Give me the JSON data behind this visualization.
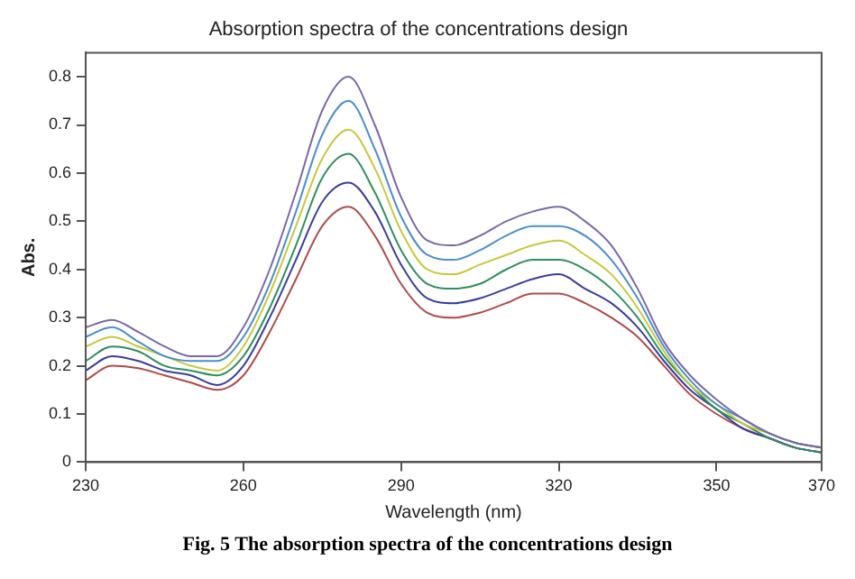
{
  "chart_data": {
    "type": "line",
    "title": "Absorption spectra of the concentrations design",
    "xlabel": "Wavelength (nm)",
    "ylabel": "Abs.",
    "annotations": [
      "Fig. 5 The absorption spectra of the concentrations design"
    ],
    "x": [
      230,
      235,
      240,
      245,
      250,
      255,
      260,
      265,
      270,
      275,
      280,
      285,
      290,
      295,
      300,
      305,
      310,
      315,
      320,
      325,
      330,
      335,
      340,
      345,
      350,
      355,
      360,
      365,
      370
    ],
    "series": [
      {
        "color": "#7b68a8",
        "values": [
          0.28,
          0.295,
          0.27,
          0.24,
          0.22,
          0.22,
          0.28,
          0.4,
          0.56,
          0.73,
          0.8,
          0.7,
          0.55,
          0.46,
          0.45,
          0.47,
          0.5,
          0.52,
          0.53,
          0.5,
          0.45,
          0.36,
          0.25,
          0.18,
          0.13,
          0.09,
          0.06,
          0.04,
          0.03
        ]
      },
      {
        "color": "#4a90c8",
        "values": [
          0.26,
          0.28,
          0.25,
          0.22,
          0.21,
          0.21,
          0.26,
          0.37,
          0.52,
          0.68,
          0.75,
          0.65,
          0.51,
          0.43,
          0.42,
          0.44,
          0.47,
          0.49,
          0.49,
          0.47,
          0.42,
          0.34,
          0.24,
          0.17,
          0.12,
          0.09,
          0.06,
          0.04,
          0.03
        ]
      },
      {
        "color": "#c8c83c",
        "values": [
          0.24,
          0.26,
          0.24,
          0.22,
          0.2,
          0.19,
          0.24,
          0.35,
          0.49,
          0.63,
          0.69,
          0.61,
          0.48,
          0.4,
          0.39,
          0.41,
          0.43,
          0.45,
          0.46,
          0.43,
          0.39,
          0.32,
          0.23,
          0.16,
          0.12,
          0.08,
          0.06,
          0.04,
          0.03
        ]
      },
      {
        "color": "#2f8f5f",
        "values": [
          0.21,
          0.24,
          0.23,
          0.2,
          0.19,
          0.18,
          0.22,
          0.32,
          0.45,
          0.59,
          0.64,
          0.56,
          0.44,
          0.37,
          0.36,
          0.37,
          0.4,
          0.42,
          0.42,
          0.4,
          0.36,
          0.3,
          0.22,
          0.16,
          0.11,
          0.08,
          0.05,
          0.03,
          0.02
        ]
      },
      {
        "color": "#3c3ca0",
        "values": [
          0.19,
          0.22,
          0.21,
          0.19,
          0.18,
          0.16,
          0.2,
          0.3,
          0.42,
          0.54,
          0.58,
          0.52,
          0.41,
          0.34,
          0.33,
          0.34,
          0.36,
          0.38,
          0.39,
          0.36,
          0.33,
          0.28,
          0.21,
          0.15,
          0.11,
          0.07,
          0.05,
          0.03,
          0.02
        ]
      },
      {
        "color": "#b04a4a",
        "values": [
          0.17,
          0.2,
          0.195,
          0.18,
          0.165,
          0.15,
          0.18,
          0.27,
          0.38,
          0.49,
          0.53,
          0.47,
          0.37,
          0.31,
          0.3,
          0.31,
          0.33,
          0.35,
          0.35,
          0.33,
          0.3,
          0.26,
          0.2,
          0.14,
          0.1,
          0.07,
          0.05,
          0.03,
          0.02
        ]
      }
    ],
    "xlim": [
      230,
      370
    ],
    "xticks": [
      230,
      260,
      290,
      320,
      350,
      370
    ],
    "ylim": [
      0,
      0.85
    ],
    "yticks": [
      0,
      0.1,
      0.2,
      0.3,
      0.4,
      0.5,
      0.6,
      0.7,
      0.8
    ],
    "marker": "none",
    "line_style": "solid"
  }
}
